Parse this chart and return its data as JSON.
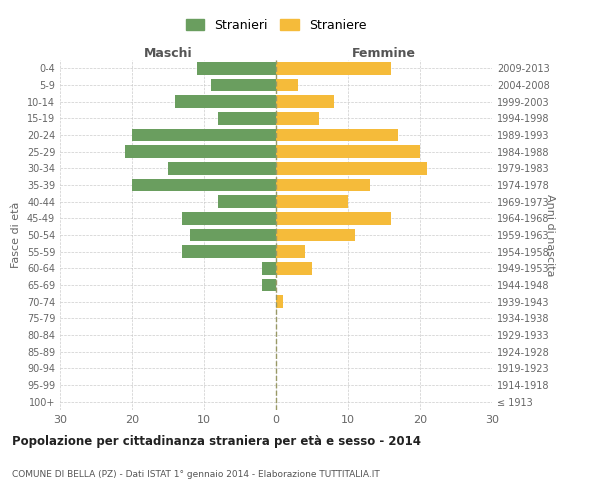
{
  "age_groups": [
    "100+",
    "95-99",
    "90-94",
    "85-89",
    "80-84",
    "75-79",
    "70-74",
    "65-69",
    "60-64",
    "55-59",
    "50-54",
    "45-49",
    "40-44",
    "35-39",
    "30-34",
    "25-29",
    "20-24",
    "15-19",
    "10-14",
    "5-9",
    "0-4"
  ],
  "birth_years": [
    "≤ 1913",
    "1914-1918",
    "1919-1923",
    "1924-1928",
    "1929-1933",
    "1934-1938",
    "1939-1943",
    "1944-1948",
    "1949-1953",
    "1954-1958",
    "1959-1963",
    "1964-1968",
    "1969-1973",
    "1974-1978",
    "1979-1983",
    "1984-1988",
    "1989-1993",
    "1994-1998",
    "1999-2003",
    "2004-2008",
    "2009-2013"
  ],
  "males": [
    0,
    0,
    0,
    0,
    0,
    0,
    0,
    2,
    2,
    13,
    12,
    13,
    8,
    20,
    15,
    21,
    20,
    8,
    14,
    9,
    11
  ],
  "females": [
    0,
    0,
    0,
    0,
    0,
    0,
    1,
    0,
    5,
    4,
    11,
    16,
    10,
    13,
    21,
    20,
    17,
    6,
    8,
    3,
    16
  ],
  "male_color": "#6a9e5f",
  "female_color": "#f5bb3a",
  "title": "Popolazione per cittadinanza straniera per età e sesso - 2014",
  "subtitle": "COMUNE DI BELLA (PZ) - Dati ISTAT 1° gennaio 2014 - Elaborazione TUTTITALIA.IT",
  "xlabel_left": "Maschi",
  "xlabel_right": "Femmine",
  "ylabel_left": "Fasce di età",
  "ylabel_right": "Anni di nascita",
  "legend_male": "Stranieri",
  "legend_female": "Straniere",
  "xlim": 30,
  "bg_color": "#ffffff",
  "grid_color": "#cccccc",
  "bar_height": 0.75,
  "dashed_line_color": "#999966"
}
